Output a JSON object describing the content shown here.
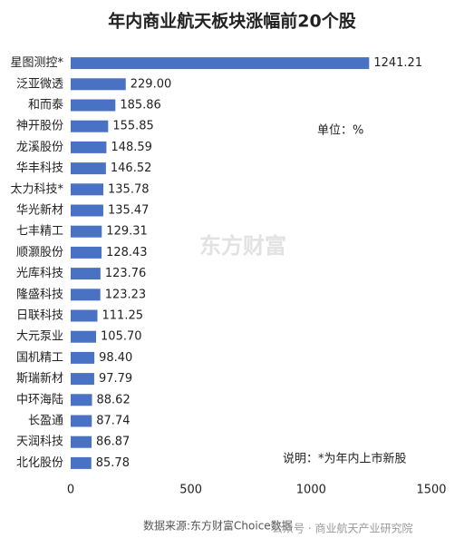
{
  "chart_data": {
    "type": "bar",
    "orientation": "horizontal",
    "title": "年内商业航天板块涨幅前20个股",
    "categories": [
      "星图测控*",
      "泛亚微透",
      "和而泰",
      "神开股份",
      "龙溪股份",
      "华丰科技",
      "太力科技*",
      "华光新材",
      "七丰精工",
      "顺灏股份",
      "光库科技",
      "隆盛科技",
      "日联科技",
      "大元泵业",
      "国机精工",
      "斯瑞新材",
      "中环海陆",
      "长盈通",
      "天润科技",
      "北化股份"
    ],
    "values": [
      1241.21,
      229,
      185.86,
      155.85,
      148.59,
      146.52,
      135.78,
      135.47,
      129.31,
      128.43,
      123.76,
      123.23,
      111.25,
      105.7,
      98.4,
      97.79,
      88.62,
      87.74,
      86.87,
      85.78
    ],
    "value_labels": [
      "1241.21",
      "229.00",
      "185.86",
      "155.85",
      "148.59",
      "146.52",
      "135.78",
      "135.47",
      "129.31",
      "128.43",
      "123.76",
      "123.23",
      "111.25",
      "105.70",
      "98.40",
      "97.79",
      "88.62",
      "87.74",
      "86.87",
      "85.78"
    ],
    "color": "#4a72c4",
    "xlim": [
      0,
      1500
    ],
    "xticks": [
      0,
      500,
      1000,
      1500
    ],
    "grid": false,
    "unit_note": "单位：%",
    "note": "说明：*为年内上市新股",
    "source": "数据来源:东方财富Choice数据",
    "watermark": "东方财富",
    "credit": "公众号 · 商业航天产业研究院"
  }
}
